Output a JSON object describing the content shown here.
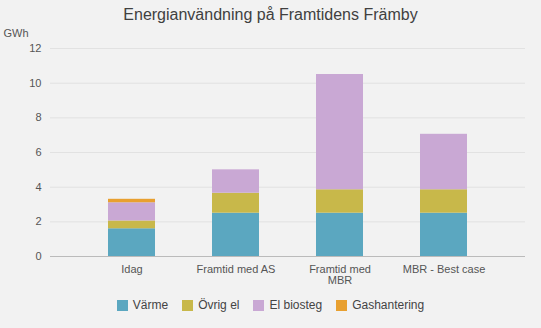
{
  "chart_data": {
    "type": "bar",
    "stacked": true,
    "title": "Energianvändning på Framtidens Främby",
    "ylabel": "GWh",
    "categories": [
      "Idag",
      "Framtid med AS",
      "Framtid med\nMBR",
      "MBR - Best case"
    ],
    "series": [
      {
        "name": "Värme",
        "color": "#5ba7c0",
        "values": [
          1.6,
          2.5,
          2.5,
          2.5
        ]
      },
      {
        "name": "Övrig el",
        "color": "#c8b84a",
        "values": [
          0.45,
          1.15,
          1.35,
          1.35
        ]
      },
      {
        "name": "El biosteg",
        "color": "#c9a8d4",
        "values": [
          1.05,
          1.35,
          6.65,
          3.2
        ]
      },
      {
        "name": "Gashantering",
        "color": "#e8a030",
        "values": [
          0.2,
          0.0,
          0.0,
          0.0
        ]
      }
    ],
    "ylim": [
      0,
      12
    ],
    "yticks": [
      0,
      2,
      4,
      6,
      8,
      10,
      12
    ],
    "grid": true,
    "legend": "bottom"
  }
}
